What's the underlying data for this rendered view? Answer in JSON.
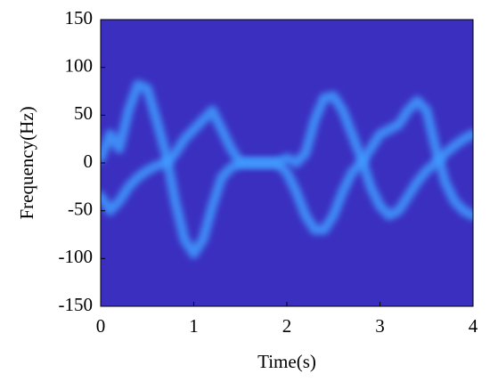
{
  "chart_data": {
    "type": "spectrogram",
    "xlabel": "Time(s)",
    "ylabel": "Frequency(Hz)",
    "xlim": [
      0,
      4
    ],
    "xticks": [
      0,
      1,
      2,
      3,
      4
    ],
    "ylim": [
      -150,
      150
    ],
    "yticks": [
      -150,
      -100,
      -50,
      0,
      50,
      100,
      150
    ],
    "background": "#3b2fc0",
    "x": [
      0,
      0.1,
      0.2,
      0.3,
      0.4,
      0.5,
      0.6,
      0.7,
      0.8,
      0.9,
      1.0,
      1.1,
      1.2,
      1.3,
      1.4,
      1.5,
      1.6,
      1.7,
      1.8,
      1.9,
      2.0,
      2.1,
      2.2,
      2.3,
      2.4,
      2.5,
      2.6,
      2.7,
      2.8,
      2.9,
      3.0,
      3.1,
      3.2,
      3.3,
      3.4,
      3.5,
      3.6,
      3.7,
      3.8,
      3.9,
      4.0
    ],
    "series": [
      {
        "color": "#3f9bff",
        "values": [
          5,
          30,
          15,
          55,
          82,
          78,
          45,
          10,
          -40,
          -80,
          -95,
          -80,
          -45,
          -15,
          -5,
          0,
          0,
          0,
          0,
          0,
          5,
          0,
          10,
          45,
          68,
          70,
          55,
          30,
          5,
          -25,
          -45,
          -55,
          -50,
          -35,
          -20,
          -8,
          0,
          10,
          18,
          25,
          30
        ]
      },
      {
        "color": "#3f9bff",
        "values": [
          -35,
          -50,
          -40,
          -25,
          -15,
          -8,
          -3,
          0,
          10,
          25,
          35,
          45,
          55,
          35,
          15,
          0,
          0,
          0,
          0,
          0,
          -10,
          -30,
          -55,
          -70,
          -70,
          -55,
          -30,
          -10,
          0,
          15,
          30,
          35,
          40,
          55,
          65,
          55,
          15,
          -20,
          -40,
          -50,
          -55
        ]
      }
    ]
  }
}
